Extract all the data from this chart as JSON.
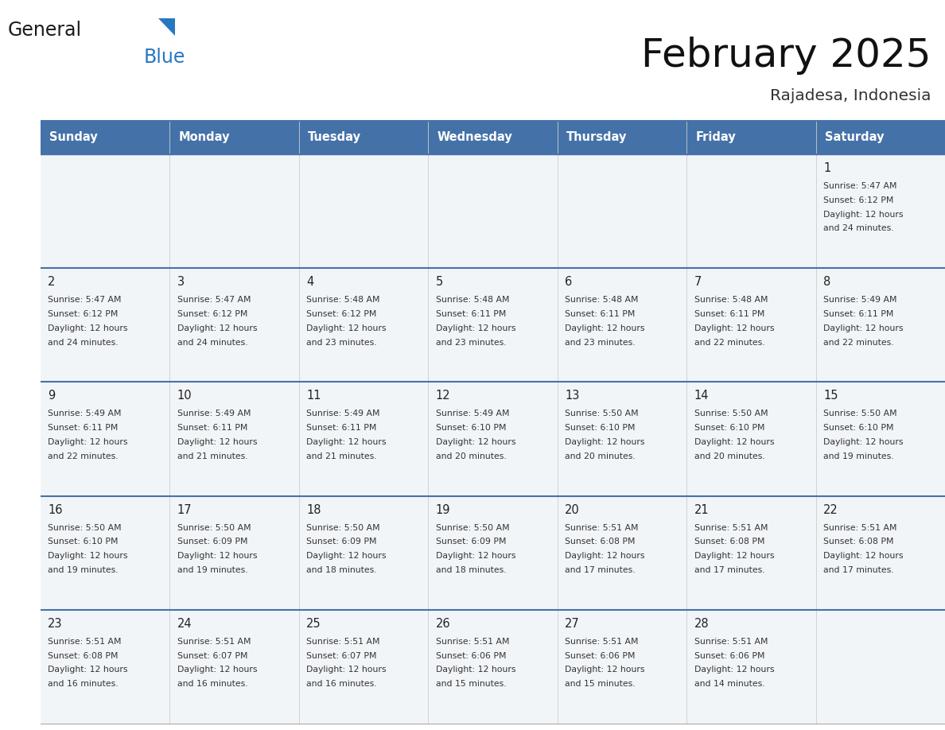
{
  "title": "February 2025",
  "subtitle": "Rajadesa, Indonesia",
  "header_color": "#4472a8",
  "header_text_color": "#ffffff",
  "cell_bg_color": "#f2f5f8",
  "cell_bg_alt": "#ffffff",
  "line_color": "#4472a8",
  "text_color": "#333333",
  "days_of_week": [
    "Sunday",
    "Monday",
    "Tuesday",
    "Wednesday",
    "Thursday",
    "Friday",
    "Saturday"
  ],
  "calendar_data": [
    [
      null,
      null,
      null,
      null,
      null,
      null,
      {
        "day": 1,
        "sunrise": "5:47 AM",
        "sunset": "6:12 PM",
        "daylight": "12 hours",
        "daylight2": "and 24 minutes."
      }
    ],
    [
      {
        "day": 2,
        "sunrise": "5:47 AM",
        "sunset": "6:12 PM",
        "daylight": "12 hours",
        "daylight2": "and 24 minutes."
      },
      {
        "day": 3,
        "sunrise": "5:47 AM",
        "sunset": "6:12 PM",
        "daylight": "12 hours",
        "daylight2": "and 24 minutes."
      },
      {
        "day": 4,
        "sunrise": "5:48 AM",
        "sunset": "6:12 PM",
        "daylight": "12 hours",
        "daylight2": "and 23 minutes."
      },
      {
        "day": 5,
        "sunrise": "5:48 AM",
        "sunset": "6:11 PM",
        "daylight": "12 hours",
        "daylight2": "and 23 minutes."
      },
      {
        "day": 6,
        "sunrise": "5:48 AM",
        "sunset": "6:11 PM",
        "daylight": "12 hours",
        "daylight2": "and 23 minutes."
      },
      {
        "day": 7,
        "sunrise": "5:48 AM",
        "sunset": "6:11 PM",
        "daylight": "12 hours",
        "daylight2": "and 22 minutes."
      },
      {
        "day": 8,
        "sunrise": "5:49 AM",
        "sunset": "6:11 PM",
        "daylight": "12 hours",
        "daylight2": "and 22 minutes."
      }
    ],
    [
      {
        "day": 9,
        "sunrise": "5:49 AM",
        "sunset": "6:11 PM",
        "daylight": "12 hours",
        "daylight2": "and 22 minutes."
      },
      {
        "day": 10,
        "sunrise": "5:49 AM",
        "sunset": "6:11 PM",
        "daylight": "12 hours",
        "daylight2": "and 21 minutes."
      },
      {
        "day": 11,
        "sunrise": "5:49 AM",
        "sunset": "6:11 PM",
        "daylight": "12 hours",
        "daylight2": "and 21 minutes."
      },
      {
        "day": 12,
        "sunrise": "5:49 AM",
        "sunset": "6:10 PM",
        "daylight": "12 hours",
        "daylight2": "and 20 minutes."
      },
      {
        "day": 13,
        "sunrise": "5:50 AM",
        "sunset": "6:10 PM",
        "daylight": "12 hours",
        "daylight2": "and 20 minutes."
      },
      {
        "day": 14,
        "sunrise": "5:50 AM",
        "sunset": "6:10 PM",
        "daylight": "12 hours",
        "daylight2": "and 20 minutes."
      },
      {
        "day": 15,
        "sunrise": "5:50 AM",
        "sunset": "6:10 PM",
        "daylight": "12 hours",
        "daylight2": "and 19 minutes."
      }
    ],
    [
      {
        "day": 16,
        "sunrise": "5:50 AM",
        "sunset": "6:10 PM",
        "daylight": "12 hours",
        "daylight2": "and 19 minutes."
      },
      {
        "day": 17,
        "sunrise": "5:50 AM",
        "sunset": "6:09 PM",
        "daylight": "12 hours",
        "daylight2": "and 19 minutes."
      },
      {
        "day": 18,
        "sunrise": "5:50 AM",
        "sunset": "6:09 PM",
        "daylight": "12 hours",
        "daylight2": "and 18 minutes."
      },
      {
        "day": 19,
        "sunrise": "5:50 AM",
        "sunset": "6:09 PM",
        "daylight": "12 hours",
        "daylight2": "and 18 minutes."
      },
      {
        "day": 20,
        "sunrise": "5:51 AM",
        "sunset": "6:08 PM",
        "daylight": "12 hours",
        "daylight2": "and 17 minutes."
      },
      {
        "day": 21,
        "sunrise": "5:51 AM",
        "sunset": "6:08 PM",
        "daylight": "12 hours",
        "daylight2": "and 17 minutes."
      },
      {
        "day": 22,
        "sunrise": "5:51 AM",
        "sunset": "6:08 PM",
        "daylight": "12 hours",
        "daylight2": "and 17 minutes."
      }
    ],
    [
      {
        "day": 23,
        "sunrise": "5:51 AM",
        "sunset": "6:08 PM",
        "daylight": "12 hours",
        "daylight2": "and 16 minutes."
      },
      {
        "day": 24,
        "sunrise": "5:51 AM",
        "sunset": "6:07 PM",
        "daylight": "12 hours",
        "daylight2": "and 16 minutes."
      },
      {
        "day": 25,
        "sunrise": "5:51 AM",
        "sunset": "6:07 PM",
        "daylight": "12 hours",
        "daylight2": "and 16 minutes."
      },
      {
        "day": 26,
        "sunrise": "5:51 AM",
        "sunset": "6:06 PM",
        "daylight": "12 hours",
        "daylight2": "and 15 minutes."
      },
      {
        "day": 27,
        "sunrise": "5:51 AM",
        "sunset": "6:06 PM",
        "daylight": "12 hours",
        "daylight2": "and 15 minutes."
      },
      {
        "day": 28,
        "sunrise": "5:51 AM",
        "sunset": "6:06 PM",
        "daylight": "12 hours",
        "daylight2": "and 14 minutes."
      },
      null
    ]
  ],
  "logo_text_general": "General",
  "logo_text_blue": "Blue",
  "logo_color_general": "#1a1a1a",
  "logo_color_blue": "#2878c0",
  "logo_triangle_color": "#2878c0"
}
